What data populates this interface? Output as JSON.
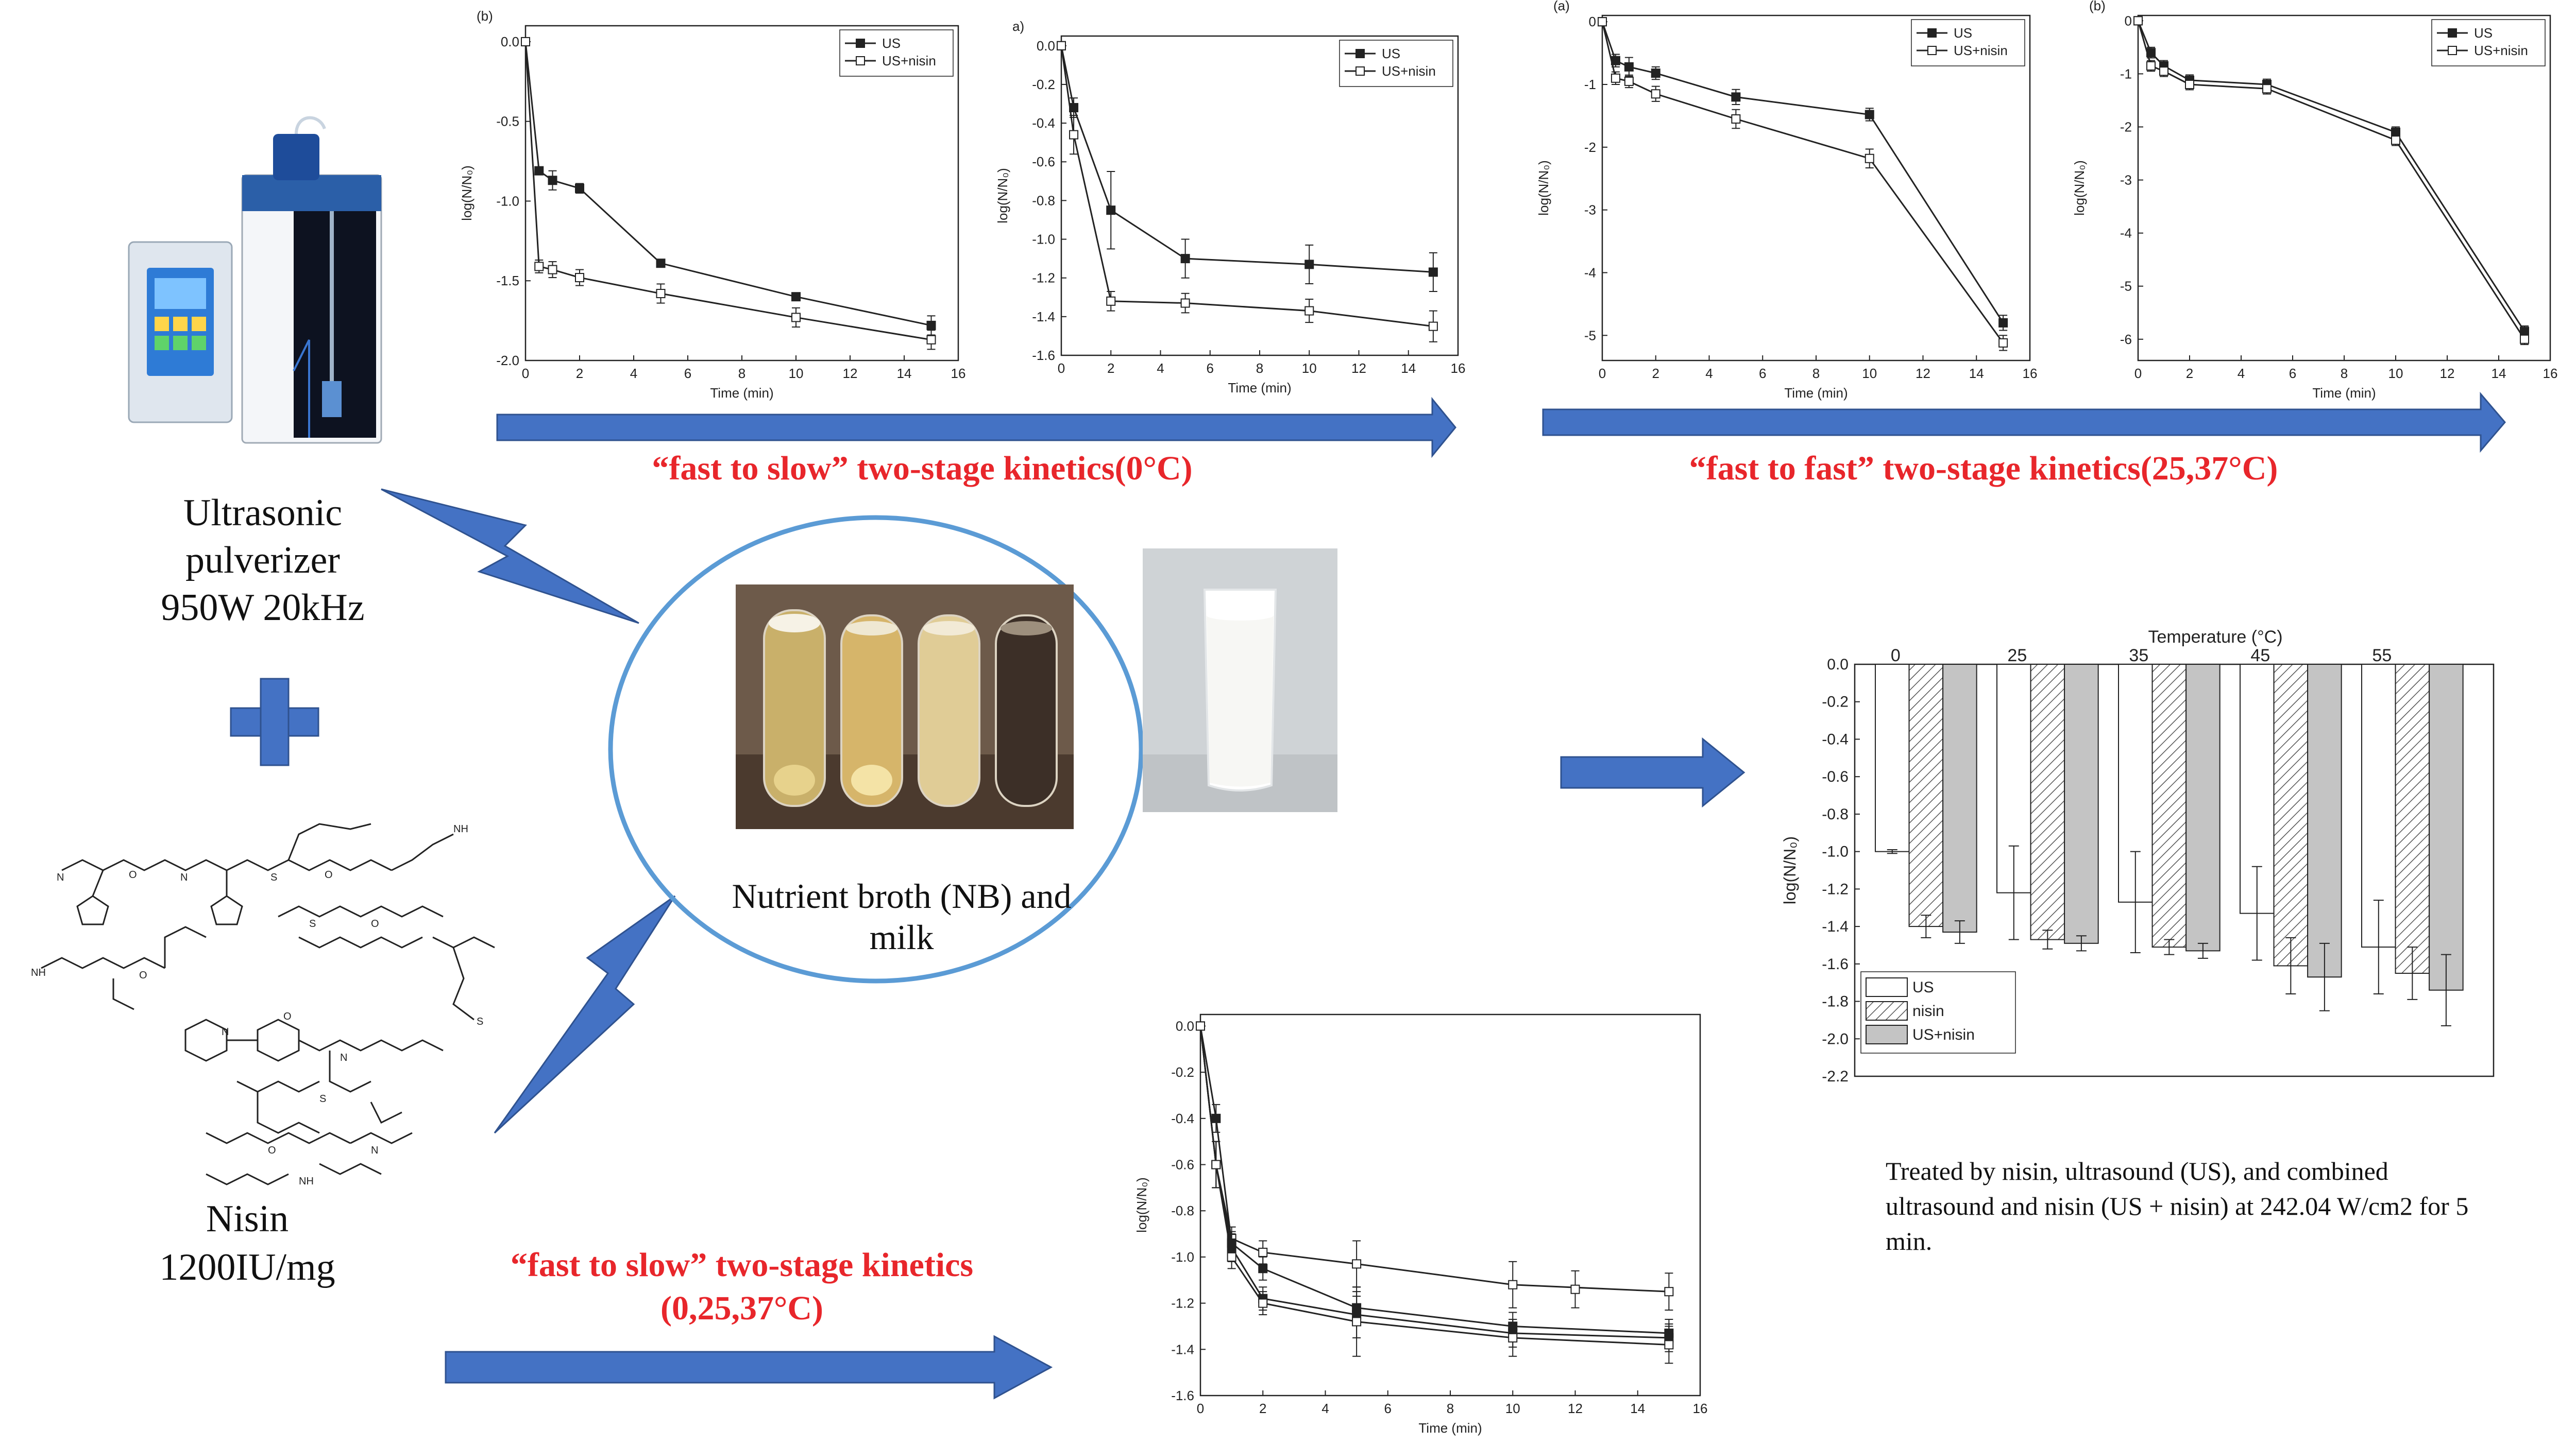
{
  "colors": {
    "arrow": "#4472c4",
    "arrow_edge": "#2f528f",
    "ellipse": "#5b9bd5",
    "red_text": "#e8262b",
    "axis": "#222222"
  },
  "device": {
    "label_line1": "Ultrasonic",
    "label_line2": "pulverizer",
    "label_line3": "950W 20kHz",
    "icon": "ultrasonic-device-icon"
  },
  "plus_icon": "plus-icon",
  "nisin": {
    "label_line1": "Nisin",
    "label_line2": "1200IU/mg",
    "icon": "nisin-molecule-icon"
  },
  "center": {
    "label": "Nutrient broth (NB) and milk",
    "tubes_icon": "test-tubes-icon",
    "milk_icon": "milk-glass-icon"
  },
  "arrows_text": {
    "top_left": "“fast to slow” two-stage kinetics(0°C)",
    "top_right": "“fast to fast” two-stage kinetics(25,37°C)",
    "bottom_line1": "“fast to slow” two-stage kinetics",
    "bottom_line2": "(0,25,37°C)"
  },
  "bar_caption": "Treated by nisin, ultrasound (US), and combined ultrasound and nisin (US + nisin) at 242.04 W/cm2 for 5 min.",
  "chart_data": [
    {
      "id": "c1",
      "type": "line",
      "panel_label": "(b)",
      "xlabel": "Time (min)",
      "ylabel": "log(N/N₀)",
      "xlim": [
        0,
        16
      ],
      "ylim": [
        -2.0,
        0.1
      ],
      "xticks": [
        0,
        2,
        4,
        6,
        8,
        10,
        12,
        14,
        16
      ],
      "yticks": [
        0.0,
        -0.5,
        -1.0,
        -1.5,
        -2.0
      ],
      "ydec": 1,
      "legend_position": "top-right",
      "x": [
        0,
        0.5,
        1,
        2,
        5,
        10,
        15
      ],
      "series": [
        {
          "name": "US",
          "marker": "filled",
          "values": [
            0,
            -0.81,
            -0.87,
            -0.92,
            -1.39,
            -1.6,
            -1.78
          ],
          "err": [
            0,
            0.02,
            0.06,
            0.03,
            0.02,
            0.02,
            0.06
          ]
        },
        {
          "name": "US+nisin",
          "marker": "open",
          "values": [
            0,
            -1.41,
            -1.43,
            -1.48,
            -1.58,
            -1.73,
            -1.87
          ],
          "err": [
            0,
            0.04,
            0.05,
            0.05,
            0.06,
            0.06,
            0.06
          ]
        }
      ]
    },
    {
      "id": "c2",
      "type": "line",
      "panel_label": "a)",
      "xlabel": "Time (min)",
      "ylabel": "log(N/N₀)",
      "xlim": [
        0,
        16
      ],
      "ylim": [
        -1.6,
        0.05
      ],
      "xticks": [
        0,
        2,
        4,
        6,
        8,
        10,
        12,
        14,
        16
      ],
      "yticks": [
        0.0,
        -0.2,
        -0.4,
        -0.6,
        -0.8,
        -1.0,
        -1.2,
        -1.4,
        -1.6
      ],
      "ydec": 1,
      "legend_position": "top-right",
      "x": [
        0,
        0.5,
        2,
        5,
        10,
        15
      ],
      "series": [
        {
          "name": "US",
          "marker": "filled",
          "values": [
            0,
            -0.32,
            -0.85,
            -1.1,
            -1.13,
            -1.17
          ],
          "err": [
            0,
            0.05,
            0.2,
            0.1,
            0.1,
            0.1
          ]
        },
        {
          "name": "US+nisin",
          "marker": "open",
          "values": [
            0,
            -0.46,
            -1.32,
            -1.33,
            -1.37,
            -1.45
          ],
          "err": [
            0,
            0.1,
            0.05,
            0.05,
            0.06,
            0.08
          ]
        }
      ]
    },
    {
      "id": "c3",
      "type": "line",
      "panel_label": "(a)",
      "xlabel": "Time (min)",
      "ylabel": "log(N/N₀)",
      "xlim": [
        0,
        16
      ],
      "ylim": [
        -5.4,
        0.1
      ],
      "xticks": [
        0,
        2,
        4,
        6,
        8,
        10,
        12,
        14,
        16
      ],
      "yticks": [
        0,
        -1,
        -2,
        -3,
        -4,
        -5
      ],
      "ydec": 0,
      "legend_position": "top-right",
      "x": [
        0,
        0.5,
        1,
        2,
        5,
        10,
        15
      ],
      "series": [
        {
          "name": "US",
          "marker": "filled",
          "values": [
            0,
            -0.62,
            -0.72,
            -0.82,
            -1.2,
            -1.48,
            -4.8
          ],
          "err": [
            0,
            0.1,
            0.15,
            0.1,
            0.12,
            0.1,
            0.12
          ]
        },
        {
          "name": "US+nisin",
          "marker": "open",
          "values": [
            0,
            -0.9,
            -0.95,
            -1.15,
            -1.55,
            -2.18,
            -5.12
          ],
          "err": [
            0,
            0.1,
            0.1,
            0.12,
            0.15,
            0.15,
            0.12
          ]
        }
      ]
    },
    {
      "id": "c4",
      "type": "line",
      "panel_label": "(b)",
      "xlabel": "Time (min)",
      "ylabel": "log(N/N₀)",
      "xlim": [
        0,
        16
      ],
      "ylim": [
        -6.4,
        0.1
      ],
      "xticks": [
        0,
        2,
        4,
        6,
        8,
        10,
        12,
        14,
        16
      ],
      "yticks": [
        0,
        -1,
        -2,
        -3,
        -4,
        -5,
        -6
      ],
      "ydec": 0,
      "legend_position": "top-right",
      "x": [
        0,
        0.5,
        1,
        2,
        5,
        10,
        15
      ],
      "series": [
        {
          "name": "US",
          "marker": "filled",
          "values": [
            0,
            -0.6,
            -0.85,
            -1.12,
            -1.2,
            -2.1,
            -5.85
          ],
          "err": [
            0,
            0.1,
            0.1,
            0.1,
            0.1,
            0.1,
            0.1
          ]
        },
        {
          "name": "US+nisin",
          "marker": "open",
          "values": [
            0,
            -0.85,
            -0.95,
            -1.2,
            -1.28,
            -2.25,
            -6.0
          ],
          "err": [
            0,
            0.1,
            0.1,
            0.1,
            0.1,
            0.1,
            0.1
          ]
        }
      ]
    },
    {
      "id": "c5",
      "type": "line",
      "panel_label": "",
      "xlabel": "Time (min)",
      "ylabel": "log(N/N₀)",
      "xlim": [
        0,
        16
      ],
      "ylim": [
        -1.6,
        0.05
      ],
      "xticks": [
        0,
        2,
        4,
        6,
        8,
        10,
        12,
        14,
        16
      ],
      "yticks": [
        0.0,
        -0.2,
        -0.4,
        -0.6,
        -0.8,
        -1.0,
        -1.2,
        -1.4,
        -1.6
      ],
      "ydec": 1,
      "legend_position": "none",
      "x": [
        0,
        0.5,
        1,
        2,
        5,
        10,
        15
      ],
      "series": [
        {
          "name": "",
          "marker": "open",
          "values": [
            0,
            -0.6,
            -0.92,
            -0.98,
            -1.03,
            -1.12,
            -1.15
          ],
          "err": [
            0,
            0.1,
            0.05,
            0.05,
            0.1,
            0.1,
            0.08
          ]
        },
        {
          "name": "",
          "marker": "filled",
          "values": [
            0,
            -0.4,
            -0.94,
            -1.05,
            -1.22,
            -1.3,
            -1.33
          ],
          "err": [
            0,
            0.06,
            0.05,
            0.05,
            0.05,
            0.06,
            0.06
          ]
        },
        {
          "name": "",
          "marker": "filled",
          "values": [
            0,
            -0.6,
            -0.96,
            -1.18,
            -1.25,
            -1.33,
            -1.35
          ],
          "err": [
            0,
            0.1,
            0.06,
            0.05,
            0.1,
            0.06,
            0.06
          ]
        },
        {
          "name": "",
          "marker": "open",
          "values": [
            0,
            -0.6,
            -1.0,
            -1.2,
            -1.28,
            -1.35,
            -1.38
          ],
          "err": [
            0,
            0.1,
            0.05,
            0.05,
            0.15,
            0.08,
            0.08
          ]
        }
      ],
      "extra_points": [
        {
          "x": 12,
          "y": -1.14,
          "err": 0.08
        }
      ]
    },
    {
      "id": "bar",
      "type": "bar",
      "title": "Temperature (°C)",
      "ylabel": "log(N/N₀)",
      "categories": [
        "0",
        "25",
        "35",
        "45",
        "55"
      ],
      "ylim": [
        -2.2,
        0.0
      ],
      "yticks": [
        0.0,
        -0.2,
        -0.4,
        -0.6,
        -0.8,
        -1.0,
        -1.2,
        -1.4,
        -1.6,
        -1.8,
        -2.0,
        -2.2
      ],
      "legend_position": "bottom-left",
      "series": [
        {
          "name": "US",
          "fill": "white",
          "values": [
            -1.0,
            -1.22,
            -1.27,
            -1.33,
            -1.51
          ],
          "err": [
            0.01,
            0.25,
            0.27,
            0.25,
            0.25
          ]
        },
        {
          "name": "nisin",
          "fill": "hatch",
          "values": [
            -1.4,
            -1.47,
            -1.51,
            -1.61,
            -1.65
          ],
          "err": [
            0.06,
            0.05,
            0.04,
            0.15,
            0.14
          ]
        },
        {
          "name": "US+nisin",
          "fill": "gray",
          "values": [
            -1.43,
            -1.49,
            -1.53,
            -1.67,
            -1.74
          ],
          "err": [
            0.06,
            0.04,
            0.04,
            0.18,
            0.19
          ]
        }
      ]
    }
  ]
}
